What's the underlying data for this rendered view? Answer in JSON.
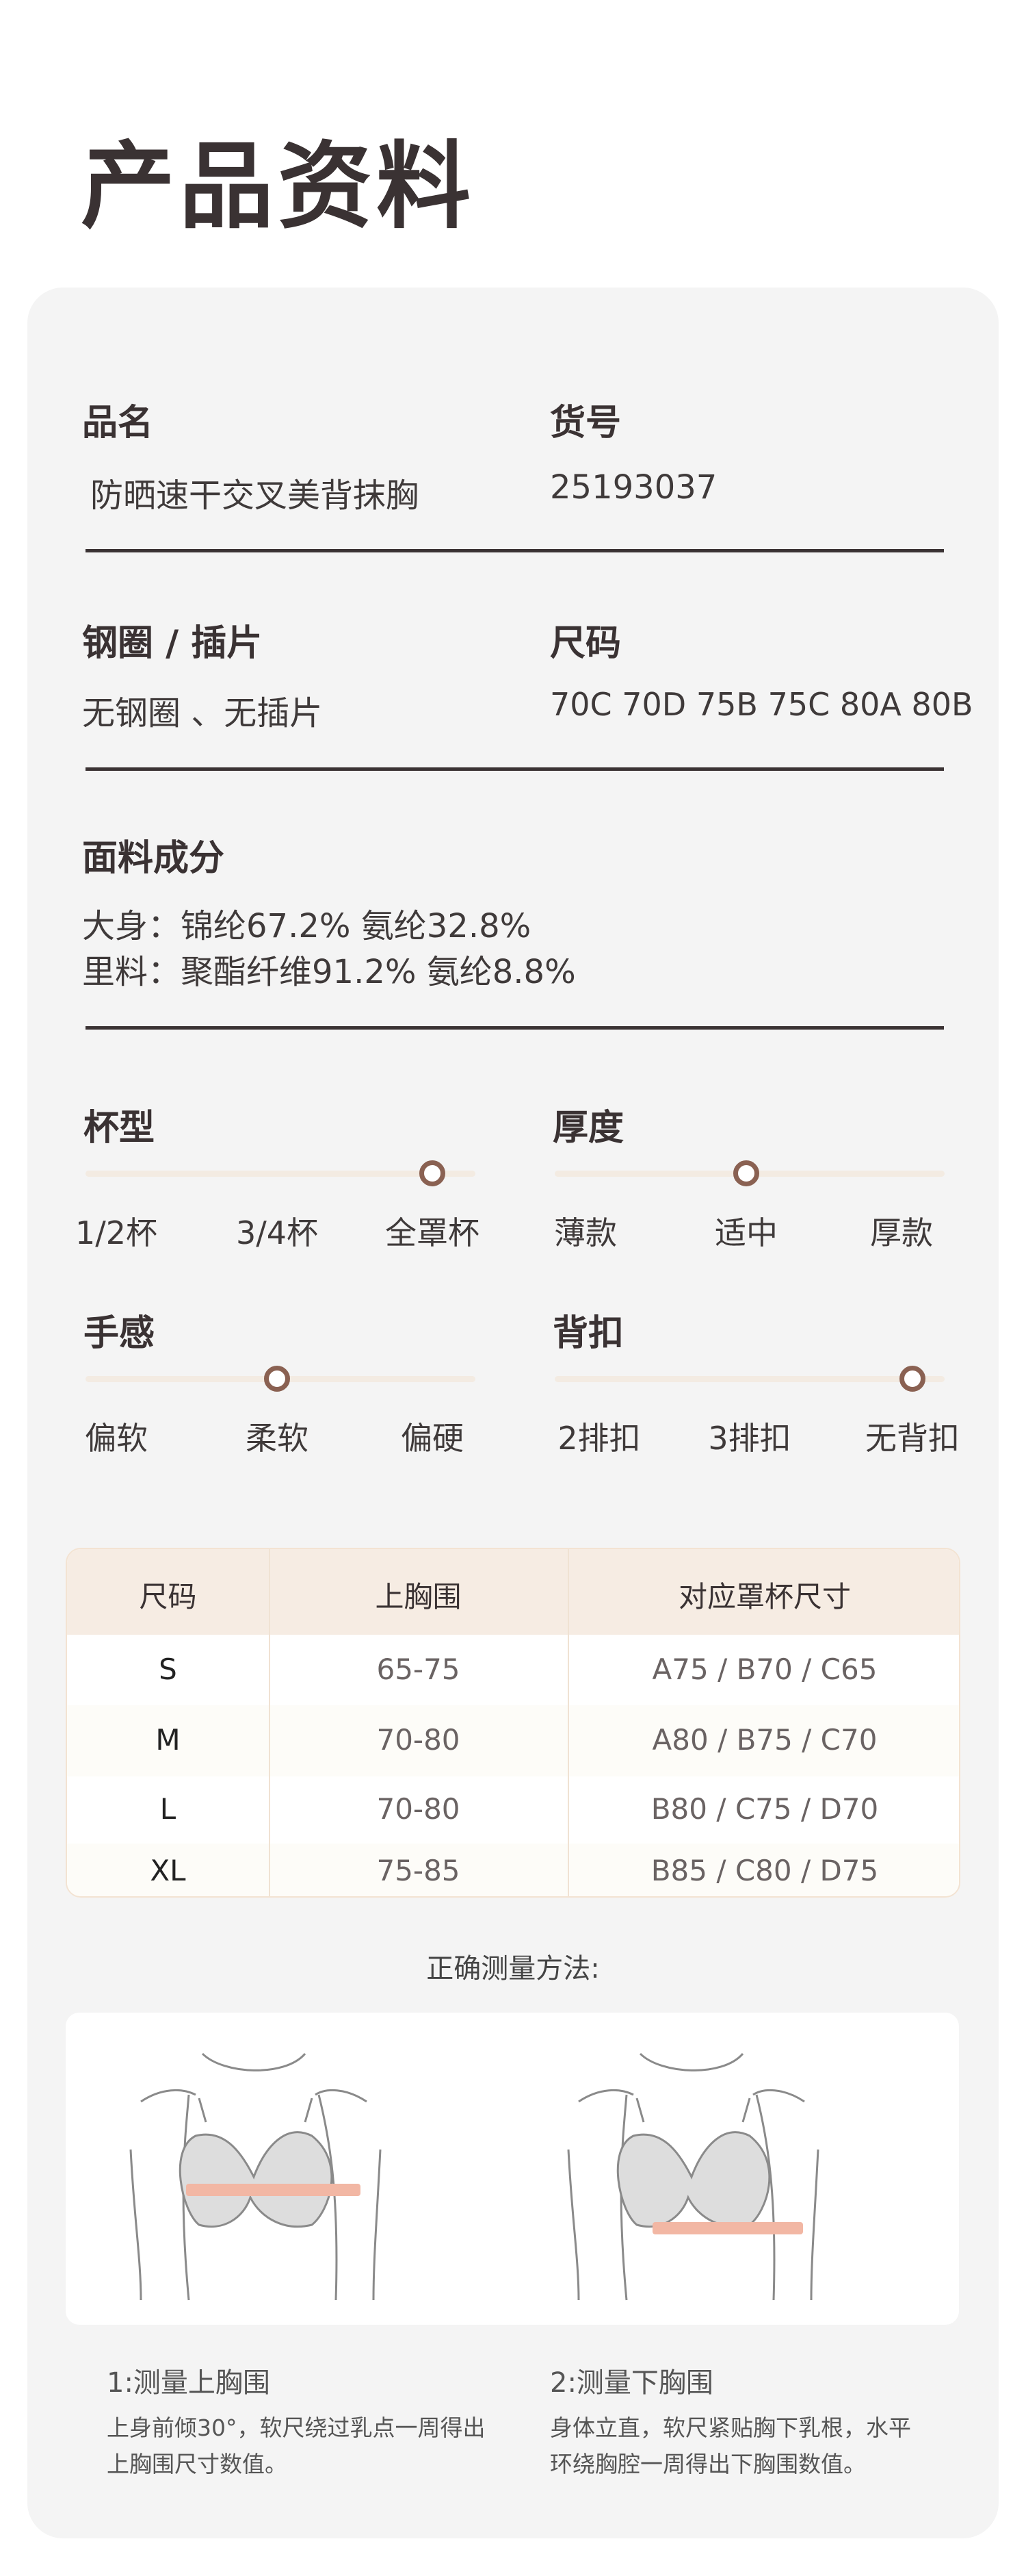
{
  "title": "产品资料",
  "info": {
    "name_label": "品名",
    "name_value": "防晒速干交叉美背抹胸",
    "sku_label": "货号",
    "sku_value": "25193037",
    "wire_label": "钢圈 / 插片",
    "wire_value": "无钢圈 、无插片",
    "size_label": "尺码",
    "size_value": "70C 70D 75B 75C 80A 80B",
    "fabric_label": "面料成分",
    "fabric_lines": [
      "大身：锦纶67.2%  氨纶32.8%",
      "里料：聚酯纤维91.2%  氨纶8.8%"
    ]
  },
  "attributes": [
    {
      "label": "杯型",
      "options": [
        "1/2杯",
        "3/4杯",
        "全罩杯"
      ],
      "selected_index": 2
    },
    {
      "label": "厚度",
      "options": [
        "薄款",
        "适中",
        "厚款"
      ],
      "selected_index": 1
    },
    {
      "label": "手感",
      "options": [
        "偏软",
        "柔软",
        "偏硬"
      ],
      "selected_index": 1
    },
    {
      "label": "背扣",
      "options": [
        "2排扣",
        "3排扣",
        "无背扣"
      ],
      "selected_index": 2
    }
  ],
  "size_table": {
    "headers": [
      "尺码",
      "上胸围",
      "对应罩杯尺寸"
    ],
    "rows": [
      [
        "S",
        "65-75",
        "A75 / B70 / C65"
      ],
      [
        "M",
        "70-80",
        "A80 / B75 / C70"
      ],
      [
        "L",
        "70-80",
        "B80 / C75 / D70"
      ],
      [
        "XL",
        "75-85",
        "B85 / C80 / D75"
      ]
    ]
  },
  "measure": {
    "heading": "正确测量方法:",
    "steps": [
      {
        "title": "1:测量上胸围",
        "lines": [
          "上身前倾30°，软尺绕过乳点一周得出",
          "上胸围尺寸数值。"
        ]
      },
      {
        "title": "2:测量下胸围",
        "lines": [
          "身体立直，软尺紧贴胸下乳根，水平",
          "环绕胸腔一周得出下胸围数值。"
        ]
      }
    ]
  },
  "colors": {
    "accent": "#8a6152",
    "track": "#f3ebe2",
    "tape": "#f2b7a4",
    "header_bg": "#f6ece3"
  }
}
